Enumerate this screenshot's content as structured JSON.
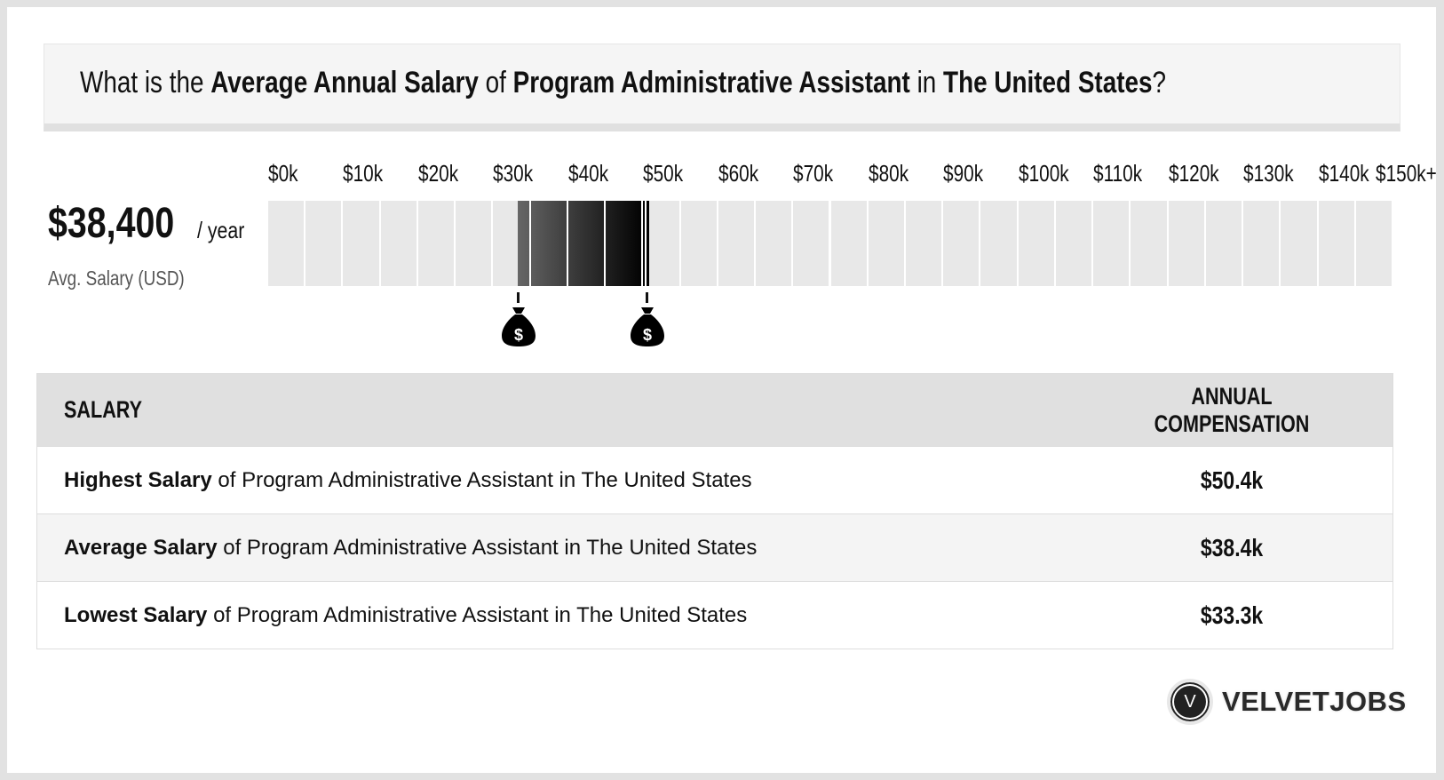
{
  "header": {
    "t1": "What is the ",
    "t2": "Average Annual Salary",
    "t3": " of ",
    "t4": "Program Administrative Assistant",
    "t5": " in ",
    "t6": "The United States",
    "t7": "?"
  },
  "summary": {
    "value": "$38,400",
    "unit": "/ year",
    "label": "Avg. Salary (USD)"
  },
  "chart_data": {
    "type": "bar",
    "tick_labels": [
      "$0k",
      "$10k",
      "$20k",
      "$30k",
      "$40k",
      "$50k",
      "$60k",
      "$70k",
      "$80k",
      "$90k",
      "$100k",
      "$110k",
      "$120k",
      "$130k",
      "$140k",
      "$150k+"
    ],
    "range": [
      0,
      150000
    ],
    "segment_step": 5000,
    "low": 33300,
    "average": 38400,
    "high": 50400,
    "fill_colors": [
      "#666666",
      "#000000"
    ],
    "empty_color": "#e8e8e8",
    "marker_icon": "money-bag-icon"
  },
  "table": {
    "headers": [
      "SALARY",
      "ANNUAL COMPENSATION"
    ],
    "rows": [
      {
        "bold": "Highest Salary",
        "rest": " of Program Administrative Assistant in The United States",
        "value": "$50.4k"
      },
      {
        "bold": "Average Salary",
        "rest": " of Program Administrative Assistant in The United States",
        "value": "$38.4k"
      },
      {
        "bold": "Lowest Salary",
        "rest": " of Program Administrative Assistant in The United States",
        "value": "$33.3k"
      }
    ],
    "row_colors": [
      "#ffffff",
      "#f4f4f4",
      "#ffffff"
    ]
  },
  "logo": {
    "mark": "V",
    "text": "VELVETJOBS"
  }
}
